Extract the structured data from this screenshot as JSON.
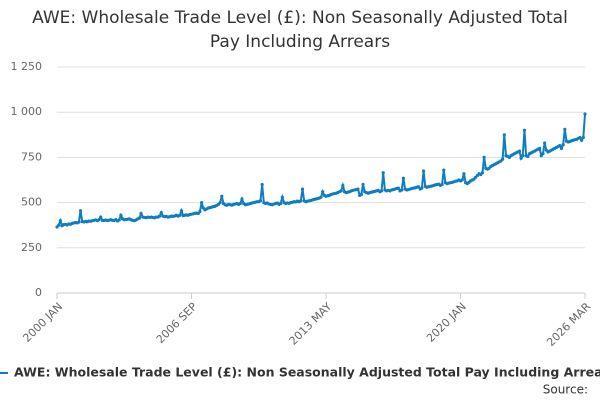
{
  "chart_data": {
    "type": "line",
    "title": "AWE: Wholesale Trade Level (£): Non Seasonally Adjusted Total Pay Including Arrears",
    "source": "Source:",
    "categories": [
      "2000 JAN",
      null,
      null,
      null,
      null,
      null,
      null,
      null,
      null,
      null,
      null,
      null,
      null,
      null,
      null,
      null,
      null,
      null,
      null,
      null,
      null,
      null,
      null,
      null,
      null,
      null,
      null,
      null,
      null,
      null,
      null,
      null,
      null,
      null,
      null,
      null,
      null,
      null,
      null,
      null,
      null,
      null,
      null,
      null,
      null,
      null,
      null,
      null,
      null,
      null,
      null,
      null,
      null,
      null,
      null,
      null,
      null,
      null,
      null,
      null,
      null,
      null,
      null,
      null,
      null,
      null,
      null,
      null,
      null,
      null,
      null,
      null,
      null,
      null,
      null,
      null,
      null,
      null,
      null,
      null,
      "2006 SEP",
      null,
      null,
      null,
      null,
      null,
      null,
      null,
      null,
      null,
      null,
      null,
      null,
      null,
      null,
      null,
      null,
      null,
      null,
      null,
      null,
      null,
      null,
      null,
      null,
      null,
      null,
      null,
      null,
      null,
      null,
      null,
      null,
      null,
      null,
      null,
      null,
      null,
      null,
      null,
      null,
      null,
      null,
      null,
      null,
      null,
      null,
      null,
      null,
      null,
      null,
      null,
      null,
      null,
      null,
      null,
      null,
      null,
      null,
      null,
      null,
      null,
      null,
      null,
      null,
      null,
      null,
      null,
      null,
      null,
      null,
      null,
      null,
      null,
      null,
      null,
      null,
      null,
      null,
      null,
      "2013 MAY",
      null,
      null,
      null,
      null,
      null,
      null,
      null,
      null,
      null,
      null,
      null,
      null,
      null,
      null,
      null,
      null,
      null,
      null,
      null,
      null,
      null,
      null,
      null,
      null,
      null,
      null,
      null,
      null,
      null,
      null,
      null,
      null,
      null,
      null,
      null,
      null,
      null,
      null,
      null,
      null,
      null,
      null,
      null,
      null,
      null,
      null,
      null,
      null,
      null,
      null,
      null,
      null,
      null,
      null,
      null,
      null,
      null,
      null,
      null,
      null,
      null,
      null,
      null,
      null,
      null,
      null,
      null,
      null,
      null,
      null,
      null,
      null,
      null,
      null,
      null,
      null,
      null,
      null,
      null,
      "2020 JAN",
      null,
      null,
      null,
      null,
      null,
      null,
      null,
      null,
      null,
      null,
      null,
      null,
      null,
      null,
      null,
      null,
      null,
      null,
      null,
      null,
      null,
      null,
      null,
      null,
      null,
      null,
      null,
      null,
      null,
      null,
      null,
      null,
      null,
      null,
      null,
      null,
      null,
      null,
      null,
      null,
      null,
      null,
      null,
      null,
      null,
      null,
      null,
      null,
      null,
      null,
      null,
      null,
      null,
      null,
      null,
      null,
      null,
      null,
      null,
      null,
      null,
      null,
      null,
      null,
      null,
      null,
      null,
      null,
      null,
      null,
      null,
      null,
      null,
      "2026 MAR"
    ],
    "series": [
      {
        "name": "AWE: Wholesale Trade Level (£): Non Seasonally Adjusted Total Pay Including Arrears",
        "color": "#0f7dc0",
        "values": [
          365,
          375,
          400,
          372,
          378,
          380,
          376,
          382,
          380,
          385,
          387,
          390,
          388,
          392,
          455,
          395,
          393,
          396,
          394,
          398,
          397,
          400,
          402,
          404,
          400,
          405,
          420,
          402,
          401,
          404,
          400,
          403,
          405,
          402,
          401,
          406,
          398,
          404,
          430,
          410,
          405,
          407,
          408,
          410,
          405,
          402,
          400,
          404,
          410,
          415,
          440,
          420,
          418,
          416,
          420,
          418,
          420,
          418,
          416,
          420,
          420,
          425,
          445,
          425,
          422,
          424,
          420,
          422,
          425,
          424,
          426,
          430,
          425,
          430,
          455,
          428,
          430,
          432,
          430,
          434,
          436,
          438,
          440,
          442,
          440,
          450,
          500,
          470,
          460,
          465,
          470,
          472,
          475,
          478,
          480,
          485,
          490,
          500,
          535,
          495,
          488,
          485,
          490,
          488,
          486,
          490,
          492,
          495,
          490,
          495,
          520,
          495,
          488,
          490,
          492,
          495,
          498,
          500,
          502,
          505,
          505,
          510,
          600,
          500,
          495,
          498,
          492,
          490,
          488,
          492,
          495,
          498,
          490,
          495,
          530,
          500,
          495,
          498,
          496,
          500,
          502,
          505,
          504,
          508,
          505,
          510,
          575,
          510,
          505,
          508,
          510,
          512,
          515,
          518,
          520,
          522,
          525,
          530,
          560,
          540,
          535,
          538,
          540,
          545,
          548,
          550,
          552,
          555,
          560,
          565,
          595,
          560,
          555,
          558,
          560,
          565,
          568,
          570,
          572,
          575,
          540,
          545,
          600,
          560,
          555,
          552,
          555,
          558,
          560,
          562,
          565,
          568,
          560,
          565,
          665,
          570,
          565,
          568,
          565,
          570,
          572,
          575,
          578,
          580,
          565,
          570,
          635,
          575,
          570,
          572,
          575,
          578,
          580,
          582,
          585,
          588,
          575,
          580,
          675,
          590,
          585,
          588,
          590,
          592,
          595,
          598,
          600,
          602,
          595,
          600,
          680,
          610,
          605,
          608,
          610,
          612,
          615,
          618,
          620,
          625,
          620,
          625,
          660,
          610,
          605,
          612,
          620,
          625,
          630,
          640,
          650,
          660,
          655,
          665,
          750,
          690,
          685,
          690,
          700,
          705,
          710,
          715,
          720,
          725,
          730,
          740,
          875,
          760,
          755,
          750,
          760,
          765,
          770,
          775,
          780,
          785,
          745,
          760,
          900,
          760,
          755,
          770,
          775,
          780,
          785,
          790,
          795,
          800,
          760,
          770,
          830,
          790,
          780,
          785,
          790,
          795,
          800,
          805,
          810,
          815,
          800,
          820,
          905,
          840,
          835,
          838,
          842,
          845,
          848,
          850,
          855,
          860,
          845,
          860,
          990
        ]
      }
    ],
    "ylim": [
      0,
      1250
    ],
    "yticks": [
      0,
      250,
      500,
      750,
      {
        "value": 1000,
        "label": "1 000"
      },
      {
        "value": 1250,
        "label": "1 250"
      }
    ],
    "grid": true
  }
}
